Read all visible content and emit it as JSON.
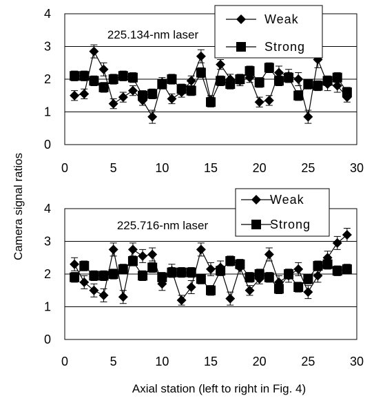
{
  "chart_data": {
    "shared_ylabel": "Camera signal ratios",
    "shared_xlabel": "Axial station (left to right in Fig. 4)",
    "panels": [
      {
        "type": "line",
        "annotation": "225.134-nm laser",
        "x": [
          1,
          2,
          3,
          4,
          5,
          6,
          7,
          8,
          9,
          10,
          11,
          12,
          13,
          14,
          15,
          16,
          17,
          18,
          19,
          20,
          21,
          22,
          23,
          24,
          25,
          26,
          27,
          28,
          29
        ],
        "xlim": [
          0,
          30
        ],
        "ylim": [
          0,
          4
        ],
        "xticks": [
          0,
          5,
          10,
          15,
          20,
          25,
          30
        ],
        "yticks": [
          0,
          1,
          2,
          3,
          4
        ],
        "grid": "horizontal",
        "legend_position": "top-right",
        "series": [
          {
            "name": "Weak",
            "marker": "diamond",
            "values": [
              1.5,
              1.55,
              2.85,
              2.3,
              1.25,
              1.45,
              1.65,
              1.35,
              0.85,
              1.9,
              1.4,
              1.6,
              1.95,
              2.7,
              1.35,
              2.45,
              2.0,
              1.95,
              2.05,
              1.3,
              1.35,
              2.2,
              2.1,
              2.0,
              0.85,
              2.6,
              1.85,
              1.8,
              1.45
            ],
            "errors": [
              0.15,
              0.15,
              0.2,
              0.2,
              0.15,
              0.15,
              0.15,
              0.15,
              0.2,
              0.15,
              0.15,
              0.15,
              0.15,
              0.2,
              0.15,
              0.15,
              0.15,
              0.15,
              0.15,
              0.15,
              0.15,
              0.2,
              0.2,
              0.2,
              0.2,
              0.25,
              0.2,
              0.2,
              0.15
            ]
          },
          {
            "name": "Strong",
            "marker": "square",
            "values": [
              2.1,
              2.1,
              1.95,
              1.75,
              2.0,
              2.1,
              2.05,
              1.5,
              1.55,
              1.85,
              2.0,
              1.7,
              1.65,
              2.2,
              1.3,
              1.95,
              1.85,
              2.0,
              2.25,
              1.9,
              2.35,
              1.95,
              2.05,
              1.5,
              1.85,
              1.8,
              1.95,
              2.05,
              1.6
            ],
            "errors": [
              0.15,
              0.15,
              0.15,
              0.15,
              0.15,
              0.15,
              0.15,
              0.15,
              0.15,
              0.15,
              0.15,
              0.15,
              0.15,
              0.15,
              0.15,
              0.15,
              0.15,
              0.15,
              0.15,
              0.15,
              0.15,
              0.15,
              0.15,
              0.15,
              0.15,
              0.15,
              0.15,
              0.15,
              0.15
            ]
          }
        ]
      },
      {
        "type": "line",
        "annotation": "225.716-nm laser",
        "x": [
          1,
          2,
          3,
          4,
          5,
          6,
          7,
          8,
          9,
          10,
          11,
          12,
          13,
          14,
          15,
          16,
          17,
          18,
          19,
          20,
          21,
          22,
          23,
          24,
          25,
          26,
          27,
          28,
          29
        ],
        "xlim": [
          0,
          30
        ],
        "ylim": [
          0,
          4
        ],
        "xticks": [
          0,
          5,
          10,
          15,
          20,
          25,
          30
        ],
        "yticks": [
          0,
          1,
          2,
          3,
          4
        ],
        "grid": "horizontal",
        "legend_position": "top-right",
        "series": [
          {
            "name": "Weak",
            "marker": "diamond",
            "values": [
              2.3,
              1.75,
              1.5,
              1.35,
              2.75,
              1.3,
              2.75,
              2.55,
              2.6,
              1.7,
              2.1,
              1.2,
              1.6,
              2.75,
              2.15,
              2.2,
              1.25,
              2.2,
              1.5,
              1.85,
              2.6,
              1.75,
              1.95,
              2.15,
              1.45,
              1.95,
              2.5,
              2.95,
              3.2
            ],
            "errors": [
              0.2,
              0.2,
              0.2,
              0.2,
              0.2,
              0.2,
              0.2,
              0.2,
              0.2,
              0.2,
              0.2,
              0.15,
              0.2,
              0.2,
              0.2,
              0.2,
              0.2,
              0.2,
              0.15,
              0.15,
              0.2,
              0.2,
              0.2,
              0.2,
              0.2,
              0.2,
              0.2,
              0.2,
              0.2
            ]
          },
          {
            "name": "Strong",
            "marker": "square",
            "values": [
              1.9,
              2.25,
              1.95,
              1.95,
              2.0,
              2.15,
              2.4,
              1.95,
              2.2,
              1.9,
              2.05,
              2.05,
              2.05,
              1.85,
              1.5,
              2.1,
              2.4,
              2.3,
              1.9,
              2.0,
              1.9,
              1.55,
              2.0,
              1.6,
              1.85,
              2.25,
              2.3,
              2.1,
              2.15
            ],
            "errors": [
              0.15,
              0.15,
              0.15,
              0.15,
              0.15,
              0.15,
              0.15,
              0.15,
              0.15,
              0.15,
              0.15,
              0.15,
              0.15,
              0.15,
              0.15,
              0.15,
              0.15,
              0.15,
              0.15,
              0.15,
              0.15,
              0.15,
              0.15,
              0.15,
              0.15,
              0.15,
              0.15,
              0.15,
              0.15
            ]
          }
        ]
      }
    ]
  }
}
